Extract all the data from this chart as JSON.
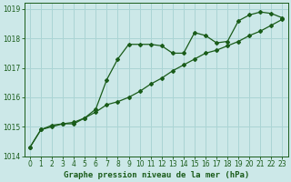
{
  "title": "Graphe pression niveau de la mer (hPa)",
  "bg_color": "#cce8e8",
  "line_color": "#1a5c1a",
  "grid_color": "#aad4d4",
  "xlim": [
    -0.5,
    23.5
  ],
  "ylim": [
    1014.0,
    1019.2
  ],
  "xticks": [
    0,
    1,
    2,
    3,
    4,
    5,
    6,
    7,
    8,
    9,
    10,
    11,
    12,
    13,
    14,
    15,
    16,
    17,
    18,
    19,
    20,
    21,
    22,
    23
  ],
  "yticks": [
    1014,
    1015,
    1016,
    1017,
    1018,
    1019
  ],
  "series1_x": [
    0,
    1,
    2,
    3,
    4,
    5,
    6,
    7,
    8,
    9,
    10,
    11,
    12,
    13,
    14,
    15,
    16,
    17,
    18,
    19,
    20,
    21,
    22,
    23
  ],
  "series1_y": [
    1014.3,
    1014.9,
    1015.0,
    1015.1,
    1015.1,
    1015.3,
    1015.6,
    1016.6,
    1017.3,
    1017.8,
    1017.8,
    1017.8,
    1017.75,
    1017.5,
    1017.5,
    1018.2,
    1018.1,
    1017.85,
    1017.9,
    1018.6,
    1018.8,
    1018.9,
    1018.85,
    1018.7
  ],
  "series2_x": [
    0,
    1,
    2,
    3,
    4,
    5,
    6,
    7,
    8,
    9,
    10,
    11,
    12,
    13,
    14,
    15,
    16,
    17,
    18,
    19,
    20,
    21,
    22,
    23
  ],
  "series2_y": [
    1014.3,
    1014.9,
    1015.05,
    1015.1,
    1015.15,
    1015.3,
    1015.5,
    1015.75,
    1015.85,
    1016.0,
    1016.2,
    1016.45,
    1016.65,
    1016.9,
    1017.1,
    1017.3,
    1017.5,
    1017.6,
    1017.75,
    1017.9,
    1018.1,
    1018.25,
    1018.45,
    1018.65
  ],
  "title_fontsize": 6.5,
  "tick_fontsize": 5.5
}
